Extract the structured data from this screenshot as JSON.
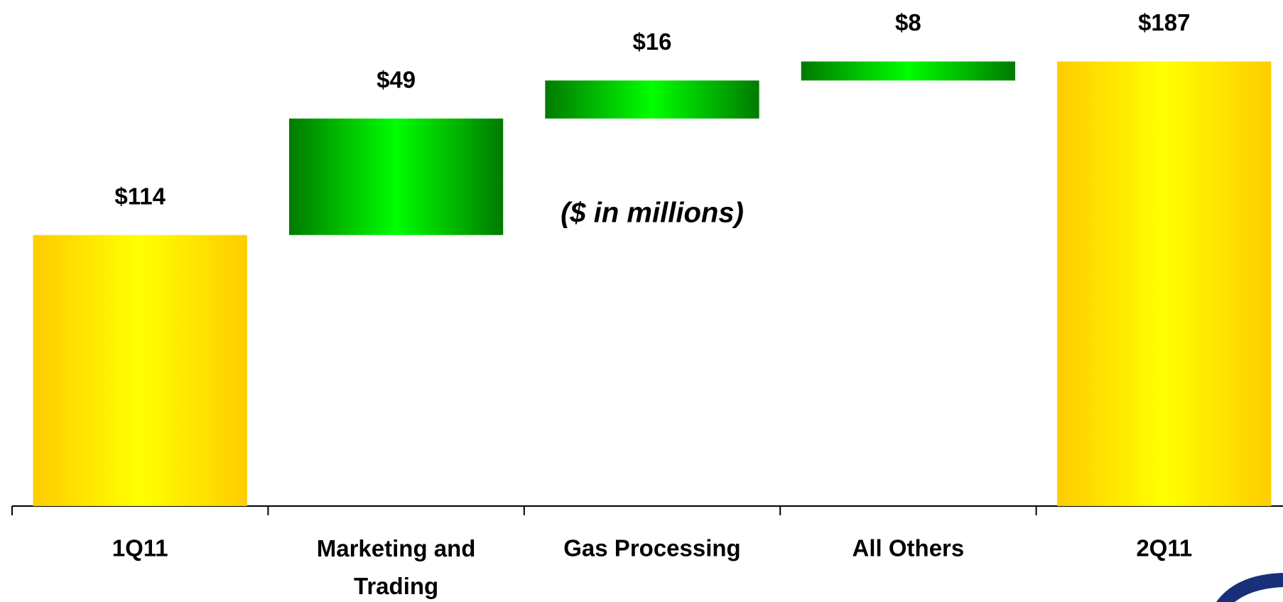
{
  "chart_data": {
    "type": "waterfall",
    "annotation": "($ in millions)",
    "categories": [
      "1Q11",
      "Marketing and Trading",
      "Gas Processing",
      "All Others",
      "2Q11"
    ],
    "values": [
      114,
      49,
      16,
      8,
      187
    ],
    "value_labels": [
      "$114",
      "$49",
      "$16",
      "$8",
      "$187"
    ],
    "colors": {
      "total": [
        "#ffcc00",
        "#ffff00"
      ],
      "increase": [
        "#007a00",
        "#00ff00"
      ]
    }
  }
}
